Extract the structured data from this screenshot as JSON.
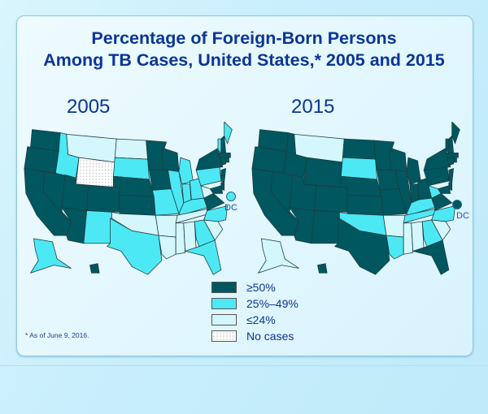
{
  "title": {
    "line1": "Percentage of Foreign-Born Persons",
    "line2": "Among TB Cases, United States,* 2005 and 2015"
  },
  "maps": [
    {
      "year_label": "2005",
      "dc_label": "DC",
      "dc_category": "mid"
    },
    {
      "year_label": "2015",
      "dc_label": "DC",
      "dc_category": "high"
    }
  ],
  "legend": {
    "items": [
      {
        "key": "high",
        "label": "≥50%",
        "color": "#00575f"
      },
      {
        "key": "mid",
        "label": "25%–49%",
        "color": "#4ce9f5"
      },
      {
        "key": "low",
        "label": "≤24%",
        "color": "#d4f7fd"
      },
      {
        "key": "none",
        "label": "No cases",
        "color": "#ffffff"
      }
    ]
  },
  "footnote": "*  As of June 9, 2016.",
  "colors": {
    "high": "#00575f",
    "mid": "#4ce9f5",
    "low": "#d4f7fd",
    "none": "#ffffff",
    "title": "#0a3598"
  },
  "chart_data": {
    "type": "choropleth",
    "title": "Percentage of Foreign-Born Persons Among TB Cases, United States,* 2005 and 2015",
    "categories": [
      "≥50%",
      "25%–49%",
      "≤24%",
      "No cases"
    ],
    "maps": [
      {
        "year": "2005",
        "states": {
          "WA": "high",
          "OR": "high",
          "CA": "high",
          "NV": "high",
          "ID": "mid",
          "MT": "low",
          "WY": "none",
          "UT": "high",
          "CO": "high",
          "AZ": "high",
          "NM": "mid",
          "ND": "low",
          "SD": "mid",
          "NE": "high",
          "KS": "high",
          "OK": "low",
          "TX": "mid",
          "MN": "high",
          "IA": "high",
          "MO": "mid",
          "AR": "low",
          "LA": "low",
          "WI": "high",
          "IL": "mid",
          "MI": "mid",
          "IN": "mid",
          "OH": "mid",
          "KY": "mid",
          "TN": "low",
          "MS": "low",
          "AL": "low",
          "GA": "mid",
          "FL": "mid",
          "SC": "low",
          "NC": "mid",
          "VA": "high",
          "WV": "low",
          "PA": "mid",
          "NY": "high",
          "VT": "mid",
          "NH": "high",
          "ME": "mid",
          "MA": "high",
          "RI": "high",
          "CT": "high",
          "NJ": "high",
          "DE": "high",
          "MD": "high",
          "DC": "mid",
          "AK": "mid",
          "HI": "high"
        }
      },
      {
        "year": "2015",
        "states": {
          "WA": "high",
          "OR": "high",
          "CA": "high",
          "NV": "high",
          "ID": "high",
          "MT": "low",
          "WY": "high",
          "UT": "high",
          "CO": "high",
          "AZ": "high",
          "NM": "high",
          "ND": "high",
          "SD": "mid",
          "NE": "high",
          "KS": "high",
          "OK": "mid",
          "TX": "high",
          "MN": "high",
          "IA": "high",
          "MO": "high",
          "AR": "low",
          "LA": "mid",
          "WI": "high",
          "IL": "high",
          "MI": "high",
          "IN": "high",
          "OH": "high",
          "KY": "mid",
          "TN": "mid",
          "MS": "low",
          "AL": "low",
          "GA": "mid",
          "FL": "high",
          "SC": "low",
          "NC": "mid",
          "VA": "high",
          "WV": "mid",
          "PA": "high",
          "NY": "high",
          "VT": "high",
          "NH": "high",
          "ME": "high",
          "MA": "high",
          "RI": "high",
          "CT": "high",
          "NJ": "high",
          "DE": "high",
          "MD": "high",
          "DC": "high",
          "AK": "low",
          "HI": "high"
        }
      }
    ]
  }
}
